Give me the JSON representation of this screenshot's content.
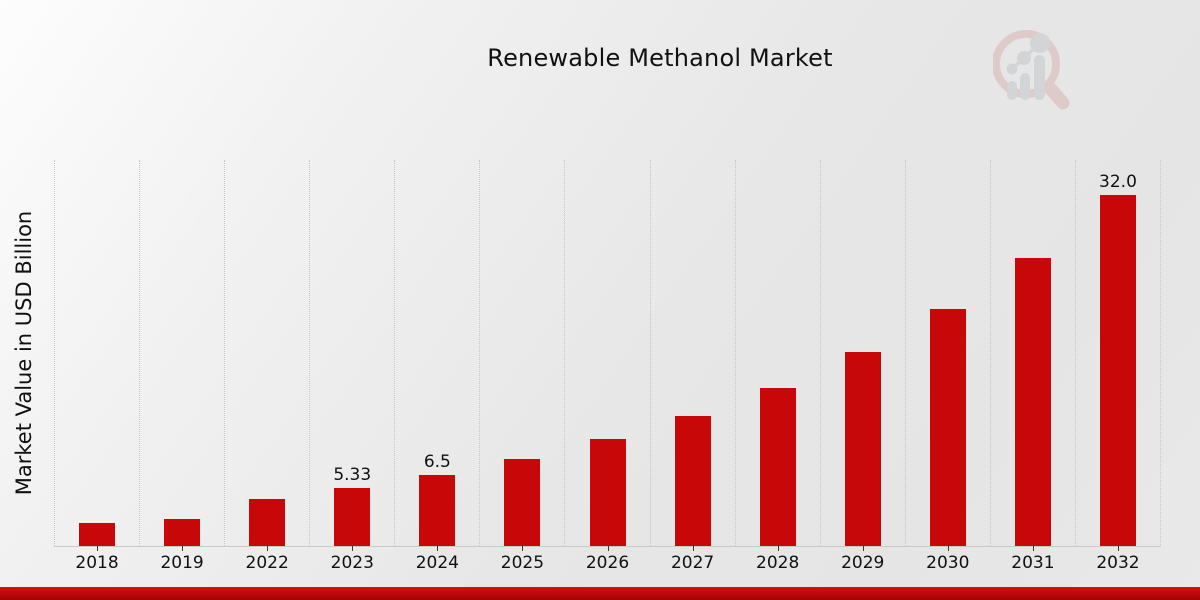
{
  "page": {
    "title": "Renewable Methanol Market"
  },
  "logo": {
    "name": "magnifier-bar-chart-watermark",
    "glass_color": "#c86a6a",
    "bars_color": "#8f97a1"
  },
  "chart_data": {
    "type": "bar",
    "title": "Renewable Methanol Market",
    "xlabel": "",
    "ylabel": "Market Value in USD Billion",
    "categories": [
      "2018",
      "2019",
      "2022",
      "2023",
      "2024",
      "2025",
      "2026",
      "2027",
      "2028",
      "2029",
      "2030",
      "2031",
      "2032"
    ],
    "values": [
      2.1,
      2.5,
      4.3,
      5.33,
      6.5,
      7.9,
      9.8,
      11.9,
      14.4,
      17.7,
      21.6,
      26.3,
      32.0
    ],
    "data_labels": {
      "2023": "5.33",
      "2024": "6.5",
      "2032": "32.0"
    },
    "ylim": [
      0,
      35.2
    ],
    "y_axis_ticks_visible": false,
    "grid": "vertical-dotted",
    "legend": "none",
    "bar_color": "#c80808",
    "label_color": "#111111"
  },
  "footer": {
    "band_color": "#b80707"
  }
}
